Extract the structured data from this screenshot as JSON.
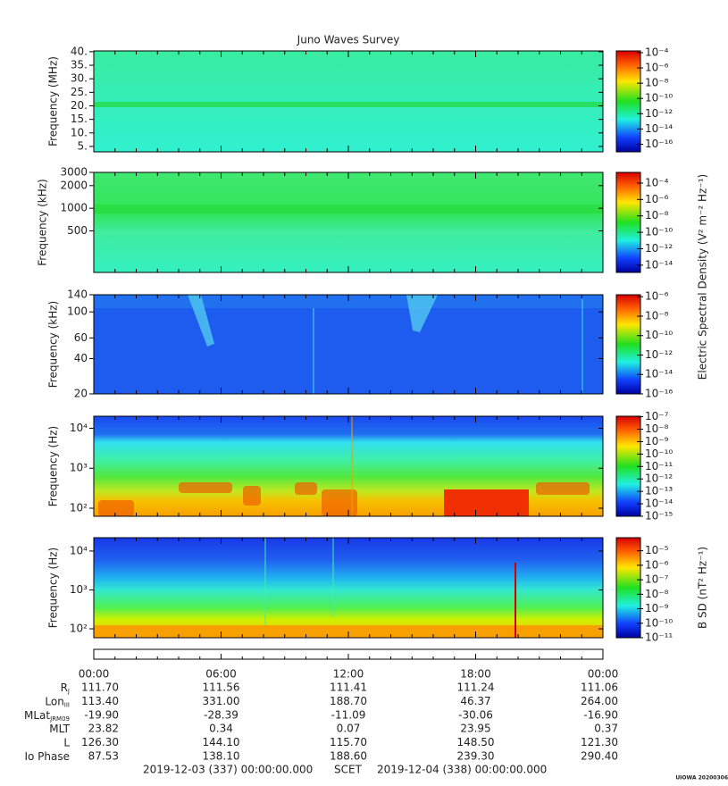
{
  "title": "Juno Waves Survey",
  "chart_data": [
    {
      "type": "spectrogram",
      "ylabel": "Frequency (MHz)",
      "yscale": "linear",
      "ylim": [
        3,
        40.3
      ],
      "yticks": [
        {
          "value": 40,
          "label": "40."
        },
        {
          "value": 35,
          "label": "35."
        },
        {
          "value": 30,
          "label": "30."
        },
        {
          "value": 25,
          "label": "25."
        },
        {
          "value": 20,
          "label": "20."
        },
        {
          "value": 15,
          "label": "15."
        },
        {
          "value": 10,
          "label": "10."
        },
        {
          "value": 5,
          "label": "5."
        }
      ],
      "zscale": "log",
      "zlim": [
        1e-17,
        0.00017
      ],
      "zticks": [
        {
          "value": 0.0001,
          "label": "10⁻⁴"
        },
        {
          "value": 1e-06,
          "label": "10⁻⁶"
        },
        {
          "value": 1e-08,
          "label": "10⁻⁸"
        },
        {
          "value": 1e-10,
          "label": "10⁻¹⁰"
        },
        {
          "value": 1e-12,
          "label": "10⁻¹²"
        },
        {
          "value": 1e-14,
          "label": "10⁻¹⁴"
        },
        {
          "value": 1e-16,
          "label": "10⁻¹⁶"
        }
      ]
    },
    {
      "type": "spectrogram",
      "ylabel": "Frequency (kHz)",
      "yscale": "log",
      "ylim": [
        140,
        3000
      ],
      "yticks": [
        3000,
        2000,
        1000,
        500
      ],
      "zscale": "log",
      "zlim": [
        1.3e-15,
        0.002
      ],
      "zticks": [
        {
          "value": 0.0001,
          "label": "10⁻⁴"
        },
        {
          "value": 1e-06,
          "label": "10⁻⁶"
        },
        {
          "value": 1e-08,
          "label": "10⁻⁸"
        },
        {
          "value": 1e-10,
          "label": "10⁻¹⁰"
        },
        {
          "value": 1e-12,
          "label": "10⁻¹²"
        },
        {
          "value": 1e-14,
          "label": "10⁻¹⁴"
        }
      ]
    },
    {
      "type": "spectrogram",
      "ylabel": "Frequency (kHz)",
      "yscale": "log",
      "ylim": [
        20,
        140
      ],
      "yticks": [
        140,
        100,
        60,
        40,
        20
      ],
      "zscale": "log",
      "zlim": [
        1e-16,
        1.6e-06
      ],
      "zticks": [
        {
          "value": 1e-06,
          "label": "10⁻⁶"
        },
        {
          "value": 1e-08,
          "label": "10⁻⁸"
        },
        {
          "value": 1e-10,
          "label": "10⁻¹⁰"
        },
        {
          "value": 1e-12,
          "label": "10⁻¹²"
        },
        {
          "value": 1e-14,
          "label": "10⁻¹⁴"
        },
        {
          "value": 1e-16,
          "label": "10⁻¹⁶"
        }
      ]
    },
    {
      "type": "spectrogram",
      "ylabel": "Frequency (Hz)",
      "yscale": "log",
      "ylim": [
        63,
        20000
      ],
      "yticks": [
        {
          "value": 10000,
          "label": "10⁴"
        },
        {
          "value": 1000,
          "label": "10³"
        },
        {
          "value": 100,
          "label": "10²"
        }
      ],
      "zscale": "log",
      "zlim": [
        1e-15,
        1.1e-07
      ],
      "zticks": [
        {
          "value": 1e-07,
          "label": "10⁻⁷"
        },
        {
          "value": 1e-08,
          "label": "10⁻⁸"
        },
        {
          "value": 1e-09,
          "label": "10⁻⁹"
        },
        {
          "value": 1e-10,
          "label": "10⁻¹⁰"
        },
        {
          "value": 1e-11,
          "label": "10⁻¹¹"
        },
        {
          "value": 1e-12,
          "label": "10⁻¹²"
        },
        {
          "value": 1e-13,
          "label": "10⁻¹³"
        },
        {
          "value": 1e-14,
          "label": "10⁻¹⁴"
        },
        {
          "value": 1e-15,
          "label": "10⁻¹⁵"
        }
      ]
    },
    {
      "type": "spectrogram",
      "ylabel": "Frequency (Hz)",
      "yscale": "log",
      "ylim": [
        59,
        22000
      ],
      "yticks": [
        {
          "value": 10000,
          "label": "10⁴"
        },
        {
          "value": 1000,
          "label": "10³"
        },
        {
          "value": 100,
          "label": "10²"
        }
      ],
      "zscale": "log",
      "zlim": [
        1e-11,
        8e-05
      ],
      "zticks": [
        {
          "value": 1e-05,
          "label": "10⁻⁵"
        },
        {
          "value": 1e-06,
          "label": "10⁻⁶"
        },
        {
          "value": 1e-07,
          "label": "10⁻⁷"
        },
        {
          "value": 1e-08,
          "label": "10⁻⁸"
        },
        {
          "value": 1e-09,
          "label": "10⁻⁹"
        },
        {
          "value": 1e-10,
          "label": "10⁻¹⁰"
        },
        {
          "value": 1e-11,
          "label": "10⁻¹¹"
        }
      ]
    }
  ],
  "electric_label": "Electric Spectral Density (V² m⁻² Hz⁻¹)",
  "magnetic_label": "B SD (nT² Hz⁻¹)",
  "time_ticks": [
    "00:00",
    "06:00",
    "12:00",
    "18:00",
    "00:00"
  ],
  "ephemeris": [
    {
      "label": "R",
      "sub": "J",
      "values": [
        "111.70",
        "111.56",
        "111.41",
        "111.24",
        "111.06"
      ]
    },
    {
      "label": "Lon",
      "sub": "III",
      "values": [
        "113.40",
        "331.00",
        "188.70",
        "46.37",
        "264.00"
      ]
    },
    {
      "label": "MLat",
      "sub": "JRM09",
      "values": [
        "-19.90",
        "-28.39",
        "-11.09",
        "-30.06",
        "-16.90"
      ]
    },
    {
      "label": "MLT",
      "values": [
        "23.82",
        "0.34",
        "0.07",
        "23.95",
        "0.37"
      ]
    },
    {
      "label": "L",
      "values": [
        "126.30",
        "144.10",
        "115.70",
        "148.50",
        "121.30"
      ]
    },
    {
      "label": "Io Phase",
      "values": [
        "87.53",
        "138.10",
        "188.60",
        "239.30",
        "290.40"
      ]
    }
  ],
  "footer": {
    "start": "2019-12-03 (337) 00:00:00.000",
    "center": "SCET",
    "end": "2019-12-04 (338) 00:00:00.000",
    "stamp": "UIOWA 20200306"
  }
}
